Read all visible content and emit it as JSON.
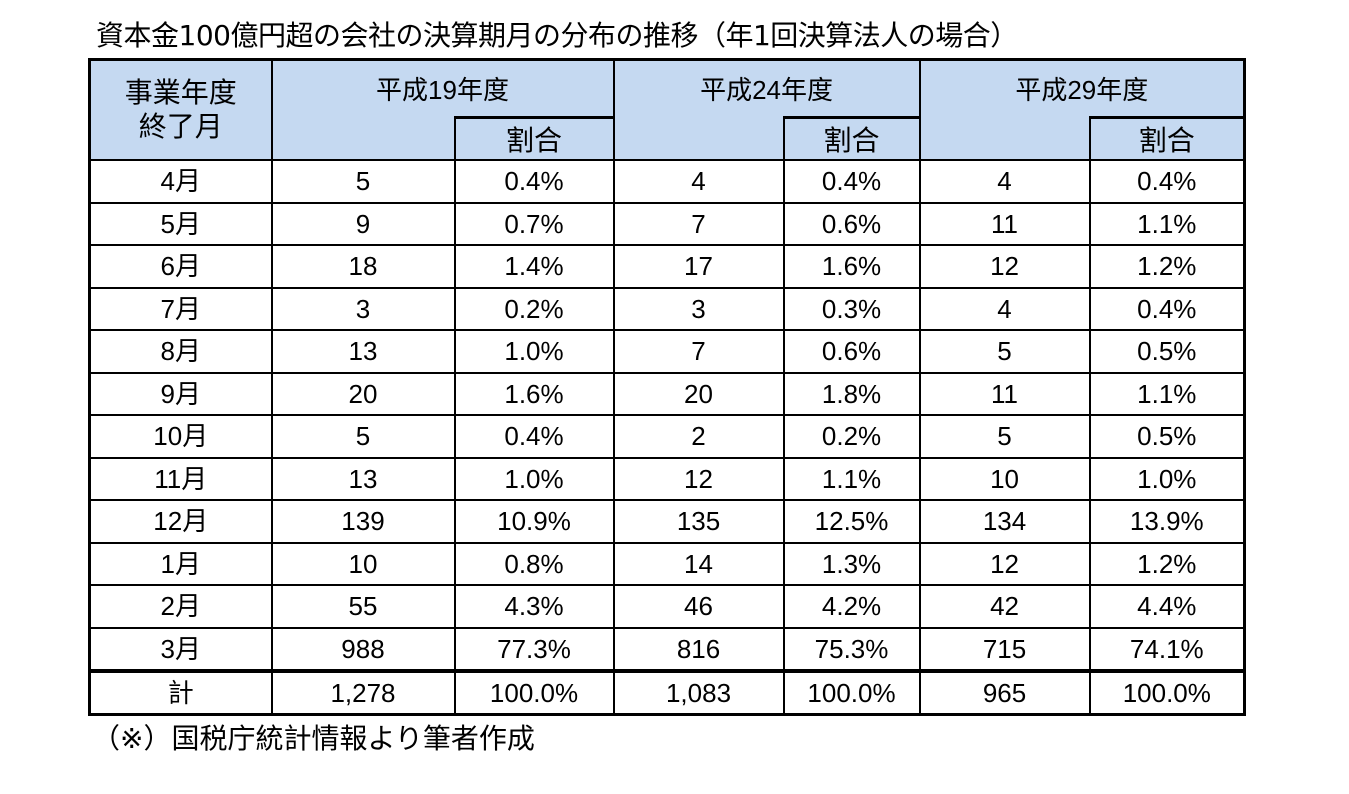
{
  "title": "資本金100億円超の会社の決算期月の分布の推移（年1回決算法人の場合）",
  "header": {
    "month_col": "事業年度\n終了月",
    "month_col_line1": "事業年度",
    "month_col_line2": "終了月",
    "years": [
      "平成19年度",
      "平成24年度",
      "平成29年度"
    ],
    "ratio_label": "割合"
  },
  "rows": [
    {
      "month": "4月",
      "c1": "5",
      "p1": "0.4%",
      "c2": "4",
      "p2": "0.4%",
      "c3": "4",
      "p3": "0.4%"
    },
    {
      "month": "5月",
      "c1": "9",
      "p1": "0.7%",
      "c2": "7",
      "p2": "0.6%",
      "c3": "11",
      "p3": "1.1%"
    },
    {
      "month": "6月",
      "c1": "18",
      "p1": "1.4%",
      "c2": "17",
      "p2": "1.6%",
      "c3": "12",
      "p3": "1.2%"
    },
    {
      "month": "7月",
      "c1": "3",
      "p1": "0.2%",
      "c2": "3",
      "p2": "0.3%",
      "c3": "4",
      "p3": "0.4%"
    },
    {
      "month": "8月",
      "c1": "13",
      "p1": "1.0%",
      "c2": "7",
      "p2": "0.6%",
      "c3": "5",
      "p3": "0.5%"
    },
    {
      "month": "9月",
      "c1": "20",
      "p1": "1.6%",
      "c2": "20",
      "p2": "1.8%",
      "c3": "11",
      "p3": "1.1%"
    },
    {
      "month": "10月",
      "c1": "5",
      "p1": "0.4%",
      "c2": "2",
      "p2": "0.2%",
      "c3": "5",
      "p3": "0.5%"
    },
    {
      "month": "11月",
      "c1": "13",
      "p1": "1.0%",
      "c2": "12",
      "p2": "1.1%",
      "c3": "10",
      "p3": "1.0%"
    },
    {
      "month": "12月",
      "c1": "139",
      "p1": "10.9%",
      "c2": "135",
      "p2": "12.5%",
      "c3": "134",
      "p3": "13.9%"
    },
    {
      "month": "1月",
      "c1": "10",
      "p1": "0.8%",
      "c2": "14",
      "p2": "1.3%",
      "c3": "12",
      "p3": "1.2%"
    },
    {
      "month": "2月",
      "c1": "55",
      "p1": "4.3%",
      "c2": "46",
      "p2": "4.2%",
      "c3": "42",
      "p3": "4.4%"
    },
    {
      "month": "3月",
      "c1": "988",
      "p1": "77.3%",
      "c2": "816",
      "p2": "75.3%",
      "c3": "715",
      "p3": "74.1%"
    }
  ],
  "total": {
    "month": "計",
    "c1": "1,278",
    "p1": "100.0%",
    "c2": "1,083",
    "p2": "100.0%",
    "c3": "965",
    "p3": "100.0%"
  },
  "note": "（※）国税庁統計情報より筆者作成",
  "colors": {
    "header_bg": "#c5d9f1",
    "border": "#000000"
  }
}
